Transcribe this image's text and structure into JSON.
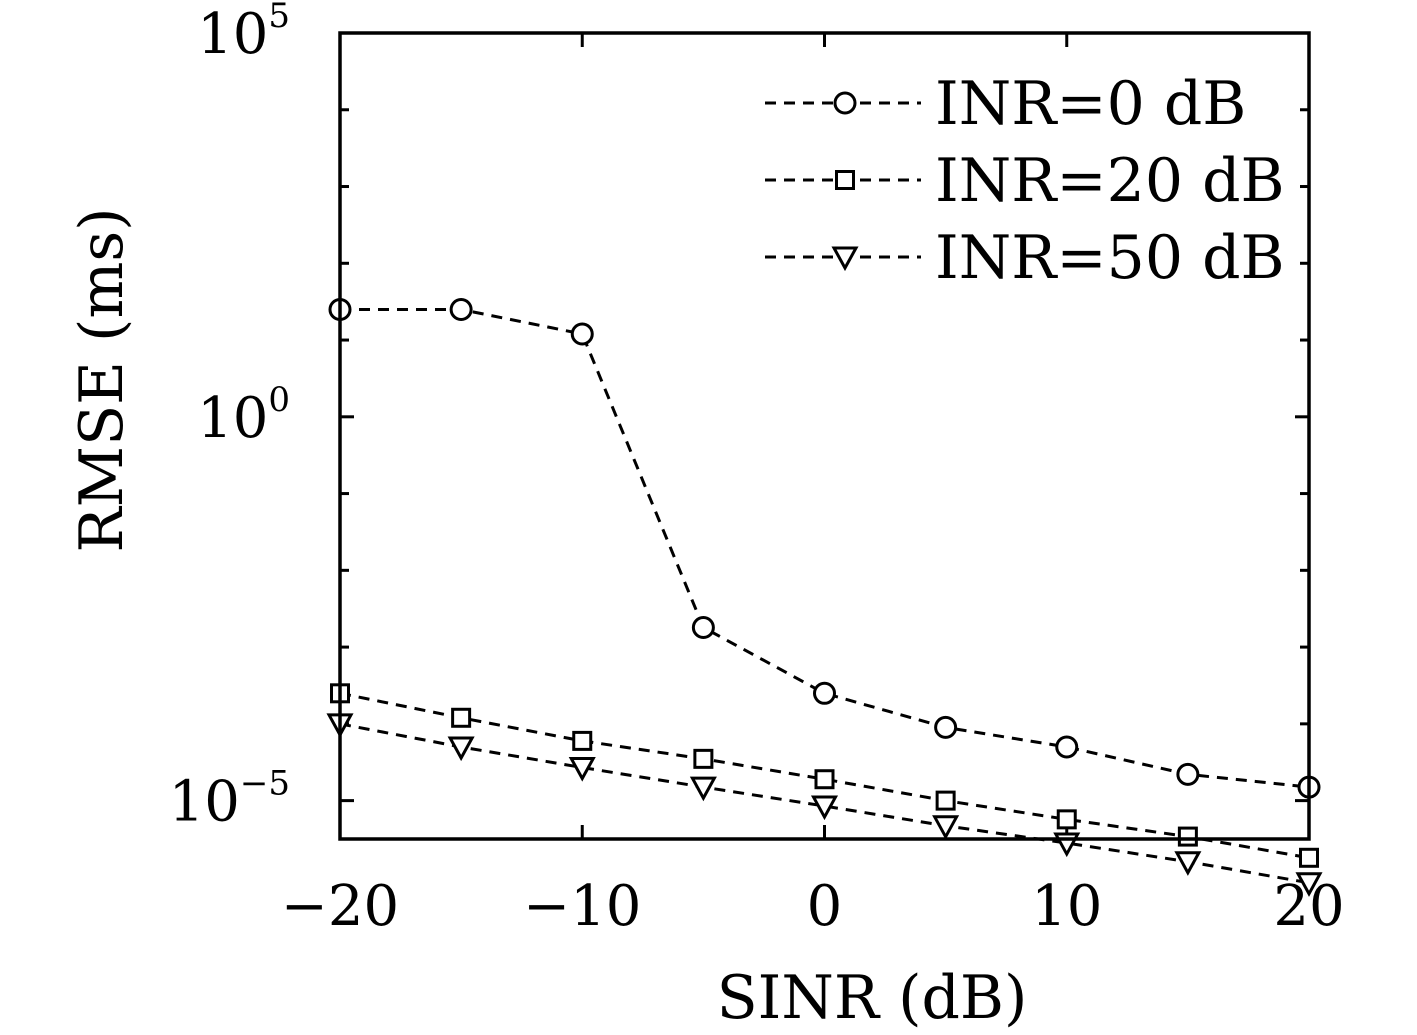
{
  "chart_data": {
    "type": "line",
    "title": "",
    "xlabel": "SINR (dB)",
    "ylabel": "RMSE (ms)",
    "xlim": [
      -20,
      20
    ],
    "ylim_log10": [
      -5.5,
      5
    ],
    "yscale": "log",
    "grid": false,
    "legend_position": "top-right",
    "x_ticks": [
      {
        "value": -20,
        "label": "−20"
      },
      {
        "value": -10,
        "label": "−10"
      },
      {
        "value": 0,
        "label": "0"
      },
      {
        "value": 10,
        "label": "10"
      },
      {
        "value": 20,
        "label": "20"
      }
    ],
    "y_ticks": [
      {
        "value_log10": 5,
        "base": "10",
        "exponent": "5"
      },
      {
        "value_log10": 0,
        "base": "10",
        "exponent": "0"
      },
      {
        "value_log10": -5,
        "base": "10",
        "exponent": "−5"
      }
    ],
    "x": [
      -20,
      -15,
      -10,
      -5,
      0,
      5,
      10,
      15,
      20
    ],
    "series": [
      {
        "name": "INR=0 dB",
        "marker": "circle",
        "values": [
          25,
          25,
          12,
          0.0018,
          0.00025,
          9e-05,
          5e-05,
          2.2e-05,
          1.5e-05
        ]
      },
      {
        "name": "INR=20 dB",
        "marker": "square",
        "values": [
          0.00025,
          0.00012,
          6e-05,
          3.5e-05,
          1.9e-05,
          1e-05,
          5.7e-06,
          3.4e-06,
          1.8e-06
        ]
      },
      {
        "name": "INR=50 dB",
        "marker": "triangle-down",
        "values": [
          0.0001,
          5e-05,
          2.7e-05,
          1.5e-05,
          8.5e-06,
          4.7e-06,
          2.8e-06,
          1.6e-06,
          8.5e-07
        ]
      }
    ]
  }
}
